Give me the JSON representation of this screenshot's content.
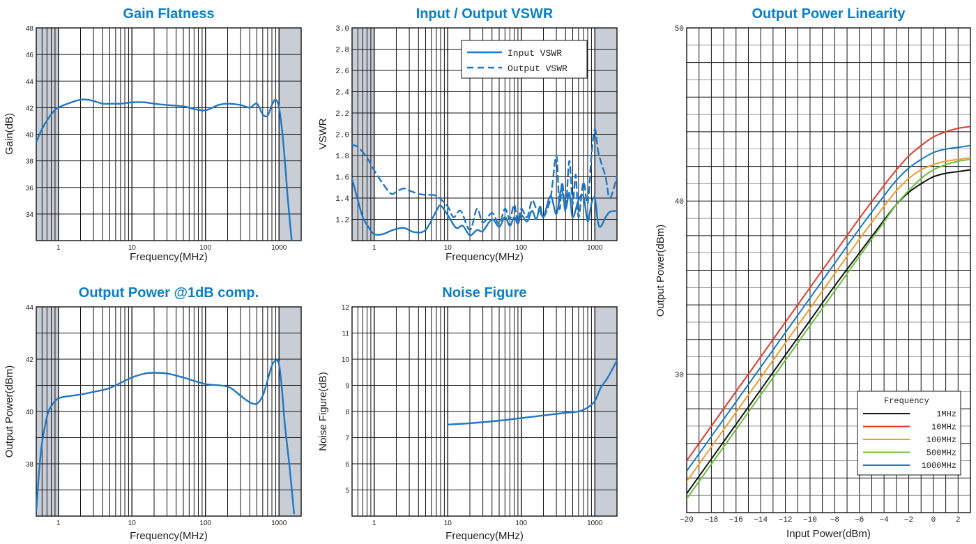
{
  "chart_data": [
    {
      "type": "line",
      "title": "Gain Flatness",
      "xlabel": "Frequency(MHz)",
      "ylabel": "Gain(dB)",
      "x_scale": "log",
      "xlim": [
        0.5,
        2000
      ],
      "ylim": [
        32,
        48
      ],
      "x_ticks": [
        "1",
        "10",
        "100",
        "1000"
      ],
      "y_ticks": [
        "34",
        "36",
        "38",
        "40",
        "42",
        "44",
        "46",
        "48"
      ],
      "shaded_x": [
        [
          0.5,
          1
        ],
        [
          1000,
          2000
        ]
      ],
      "series": [
        {
          "color": "#1f77c4",
          "x": [
            0.5,
            0.6,
            0.8,
            1,
            1.5,
            2,
            2.5,
            3,
            4,
            5,
            7,
            10,
            15,
            20,
            30,
            50,
            70,
            100,
            150,
            200,
            300,
            400,
            500,
            600,
            700,
            800,
            900,
            1000,
            1100,
            1200,
            1300,
            1400,
            1500
          ],
          "y": [
            39.4,
            40.4,
            41.5,
            42.0,
            42.4,
            42.6,
            42.6,
            42.5,
            42.3,
            42.3,
            42.3,
            42.4,
            42.4,
            42.3,
            42.2,
            42.1,
            41.9,
            41.8,
            42.2,
            42.3,
            42.2,
            42.0,
            42.3,
            41.5,
            41.4,
            42.2,
            42.6,
            42.0,
            40.3,
            38.0,
            35.5,
            33.5,
            31.8
          ]
        }
      ]
    },
    {
      "type": "line",
      "title": "Input / Output VSWR",
      "xlabel": "Frequency(MHz)",
      "ylabel": "VSWR",
      "x_scale": "log",
      "xlim": [
        0.5,
        2000
      ],
      "ylim": [
        1.0,
        3.0
      ],
      "x_ticks": [
        "1",
        "10",
        "100",
        "1000"
      ],
      "y_ticks": [
        "1.2",
        "1.4",
        "1.6",
        "1.8",
        "2.0",
        "2.2",
        "2.4",
        "2.6",
        "2.8",
        "3.0"
      ],
      "shaded_x": [
        [
          0.5,
          1
        ],
        [
          1000,
          2000
        ]
      ],
      "legend": "top-right",
      "series": [
        {
          "name": "Input VSWR",
          "color": "#1f77c4",
          "dash": "solid",
          "x": [
            0.5,
            0.6,
            0.7,
            0.85,
            1,
            1.3,
            1.8,
            2.5,
            3.5,
            5,
            7,
            8,
            10,
            13,
            16,
            20,
            25,
            30,
            40,
            50,
            60,
            70,
            80,
            90,
            100,
            120,
            140,
            160,
            180,
            200,
            250,
            300,
            350,
            400,
            450,
            500,
            600,
            700,
            800,
            900,
            1000,
            1100,
            1200,
            1400,
            1600,
            2000
          ],
          "y": [
            1.58,
            1.38,
            1.22,
            1.12,
            1.06,
            1.06,
            1.1,
            1.12,
            1.08,
            1.1,
            1.28,
            1.33,
            1.24,
            1.12,
            1.14,
            1.05,
            1.1,
            1.09,
            1.2,
            1.13,
            1.22,
            1.14,
            1.22,
            1.16,
            1.24,
            1.18,
            1.28,
            1.2,
            1.32,
            1.22,
            1.42,
            1.25,
            1.48,
            1.3,
            1.45,
            1.22,
            1.38,
            1.42,
            1.18,
            1.35,
            1.4,
            1.18,
            1.13,
            1.22,
            1.27,
            1.28
          ]
        },
        {
          "name": "Output VSWR",
          "color": "#1f77c4",
          "dash": "dashed",
          "x": [
            0.5,
            0.6,
            0.8,
            1,
            1.3,
            1.7,
            2,
            2.5,
            3,
            4,
            5,
            7,
            10,
            12,
            15,
            20,
            25,
            30,
            40,
            50,
            60,
            70,
            80,
            90,
            100,
            120,
            140,
            160,
            180,
            200,
            250,
            300,
            330,
            360,
            400,
            450,
            500,
            550,
            600,
            700,
            800,
            900,
            1000,
            1100,
            1200,
            1400,
            1600,
            2000
          ],
          "y": [
            1.9,
            1.88,
            1.78,
            1.66,
            1.54,
            1.44,
            1.46,
            1.49,
            1.47,
            1.44,
            1.43,
            1.42,
            1.32,
            1.22,
            1.28,
            1.1,
            1.3,
            1.17,
            1.26,
            1.16,
            1.3,
            1.2,
            1.34,
            1.17,
            1.3,
            1.22,
            1.38,
            1.3,
            1.28,
            1.22,
            1.4,
            1.8,
            1.3,
            1.55,
            1.28,
            1.75,
            1.35,
            1.62,
            1.22,
            1.55,
            1.35,
            1.8,
            2.05,
            1.85,
            1.75,
            1.6,
            1.4,
            1.6
          ]
        }
      ]
    },
    {
      "type": "line",
      "title": "Output Power Linearity",
      "xlabel": "Input Power(dBm)",
      "ylabel": "Output Power(dBm)",
      "xlim": [
        -20,
        3
      ],
      "ylim": [
        22,
        50
      ],
      "x_ticks": [
        "−20",
        "−18",
        "−16",
        "−14",
        "−12",
        "−10",
        "−8",
        "−6",
        "−4",
        "−2",
        "0",
        "2"
      ],
      "y_ticks": [
        "30",
        "40",
        "50"
      ],
      "legend": "bottom-right",
      "legend_title": "Frequency",
      "series": [
        {
          "name": "1MHz",
          "color": "#111111",
          "x": [
            -20,
            -18,
            -16,
            -14,
            -12,
            -10,
            -8,
            -6,
            -4,
            -3,
            -2,
            -1,
            0,
            1,
            2,
            3
          ],
          "y": [
            23.1,
            25.1,
            27.1,
            29.1,
            31.1,
            33.1,
            35.1,
            37.0,
            38.9,
            39.8,
            40.5,
            41.0,
            41.4,
            41.6,
            41.7,
            41.8
          ]
        },
        {
          "name": "10MHz",
          "color": "#e03a2c",
          "x": [
            -20,
            -18,
            -16,
            -14,
            -12,
            -10,
            -8,
            -6,
            -4,
            -3,
            -2,
            -1,
            0,
            1,
            2,
            3
          ],
          "y": [
            25.0,
            27.0,
            29.0,
            31.0,
            33.0,
            35.0,
            37.0,
            39.0,
            40.9,
            41.8,
            42.6,
            43.2,
            43.7,
            44.0,
            44.2,
            44.3
          ]
        },
        {
          "name": "100MHz",
          "color": "#f39a2a",
          "x": [
            -20,
            -18,
            -16,
            -14,
            -12,
            -10,
            -8,
            -6,
            -4,
            -3,
            -2,
            -1,
            0,
            1,
            2,
            3
          ],
          "y": [
            23.8,
            25.8,
            27.8,
            29.8,
            31.8,
            33.8,
            35.8,
            37.8,
            39.7,
            40.6,
            41.3,
            41.8,
            42.1,
            42.3,
            42.4,
            42.5
          ]
        },
        {
          "name": "500MHz",
          "color": "#6bbf3c",
          "x": [
            -20,
            -18,
            -16,
            -14,
            -12,
            -10,
            -8,
            -6,
            -4,
            -3,
            -2,
            -1,
            0,
            1,
            2,
            3
          ],
          "y": [
            22.8,
            24.8,
            26.8,
            28.8,
            30.8,
            32.8,
            34.8,
            36.8,
            38.8,
            39.8,
            40.6,
            41.3,
            41.8,
            42.1,
            42.3,
            42.4
          ]
        },
        {
          "name": "1000MHz",
          "color": "#1a78c2",
          "x": [
            -20,
            -18,
            -16,
            -14,
            -12,
            -10,
            -8,
            -6,
            -4,
            -3,
            -2,
            -1,
            0,
            1,
            2,
            3
          ],
          "y": [
            24.4,
            26.4,
            28.4,
            30.4,
            32.4,
            34.4,
            36.4,
            38.4,
            40.3,
            41.2,
            41.9,
            42.4,
            42.8,
            43.0,
            43.1,
            43.2
          ]
        }
      ]
    },
    {
      "type": "line",
      "title": "Output Power @1dB comp.",
      "xlabel": "Frequency(MHz)",
      "ylabel": "Output Power(dBm)",
      "x_scale": "log",
      "xlim": [
        0.5,
        2000
      ],
      "ylim": [
        36,
        44
      ],
      "x_ticks": [
        "1",
        "10",
        "100",
        "1000"
      ],
      "y_ticks": [
        "38",
        "40",
        "42",
        "44"
      ],
      "shaded_x": [
        [
          0.5,
          1
        ],
        [
          1000,
          2000
        ]
      ],
      "series": [
        {
          "color": "#1f77c4",
          "x": [
            0.5,
            0.55,
            0.6,
            0.7,
            0.8,
            1,
            1.5,
            2,
            3,
            5,
            10,
            15,
            20,
            30,
            50,
            100,
            200,
            300,
            400,
            500,
            600,
            700,
            800,
            900,
            1000,
            1100,
            1200,
            1400,
            1600
          ],
          "y": [
            36.2,
            37.8,
            38.8,
            39.8,
            40.2,
            40.5,
            40.6,
            40.65,
            40.75,
            40.9,
            41.3,
            41.45,
            41.48,
            41.45,
            41.3,
            41.05,
            40.95,
            40.6,
            40.35,
            40.3,
            40.6,
            41.2,
            41.75,
            41.95,
            41.8,
            40.8,
            39.5,
            37.8,
            36.1
          ]
        }
      ]
    },
    {
      "type": "line",
      "title": "Noise Figure",
      "xlabel": "Frequency(MHz)",
      "ylabel": "Noise Figure(dB)",
      "x_scale": "log",
      "xlim": [
        0.5,
        2000
      ],
      "ylim": [
        4,
        12
      ],
      "x_ticks": [
        "1",
        "10",
        "100",
        "1000"
      ],
      "y_ticks": [
        "5",
        "6",
        "7",
        "8",
        "9",
        "10",
        "11",
        "12"
      ],
      "shaded_x": [
        [
          1000,
          2000
        ]
      ],
      "series": [
        {
          "color": "#1f77c4",
          "x": [
            10,
            20,
            50,
            100,
            200,
            400,
            600,
            800,
            1000,
            1200,
            1500,
            2000
          ],
          "y": [
            7.5,
            7.55,
            7.65,
            7.75,
            7.85,
            7.95,
            8.0,
            8.15,
            8.4,
            8.9,
            9.3,
            9.95
          ]
        }
      ]
    }
  ]
}
